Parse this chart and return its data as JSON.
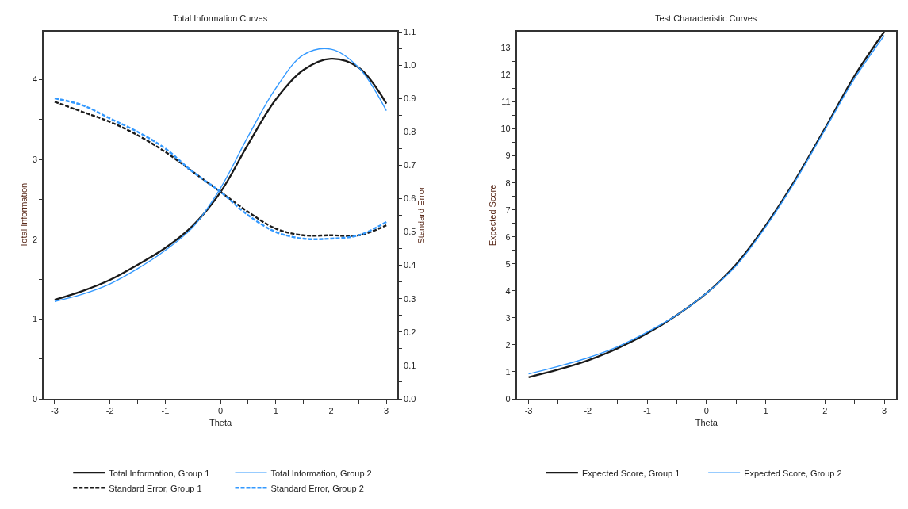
{
  "chart_data": [
    {
      "type": "line",
      "title": "Total Information Curves",
      "xlabel": "Theta",
      "ylabel": "Total Information",
      "y2label": "Standard Error",
      "legend": "bottom",
      "x": [
        -3,
        -2.5,
        -2,
        -1.5,
        -1,
        -0.5,
        0,
        0.5,
        1,
        1.5,
        2,
        2.5,
        3
      ],
      "xlim": [
        -3.2,
        3.2
      ],
      "xticks": [
        -3,
        {
          "value": -2.5,
          "label": null
        },
        -2,
        {
          "value": -1.5,
          "label": null
        },
        -1,
        {
          "value": -0.5,
          "label": null
        },
        0,
        {
          "value": 0.5,
          "label": null
        },
        1,
        {
          "value": 1.5,
          "label": null
        },
        2,
        {
          "value": 2.5,
          "label": null
        },
        3
      ],
      "ylim": [
        0,
        4.6
      ],
      "yticks": [
        0,
        {
          "value": 0.5,
          "label": null
        },
        1,
        {
          "value": 1.5,
          "label": null
        },
        2,
        {
          "value": 2.5,
          "label": null
        },
        3,
        {
          "value": 3.5,
          "label": null
        },
        4,
        {
          "value": 4.5,
          "label": null
        }
      ],
      "y2lim": [
        0,
        1.1
      ],
      "y2ticks": [
        {
          "value": 0,
          "label": "0.0"
        },
        {
          "value": 0.05,
          "label": null
        },
        0.1,
        {
          "value": 0.15,
          "label": null
        },
        0.2,
        {
          "value": 0.25,
          "label": null
        },
        0.3,
        {
          "value": 0.35,
          "label": null
        },
        0.4,
        {
          "value": 0.45,
          "label": null
        },
        0.5,
        {
          "value": 0.55,
          "label": null
        },
        0.6,
        {
          "value": 0.65,
          "label": null
        },
        0.7,
        {
          "value": 0.75,
          "label": null
        },
        0.8,
        {
          "value": 0.85,
          "label": null
        },
        0.9,
        {
          "value": 0.95,
          "label": null
        },
        {
          "value": 1,
          "label": "1.0"
        },
        {
          "value": 1.05,
          "label": null
        },
        1.1
      ],
      "series": [
        {
          "name": "Total Information, Group 1",
          "color": "#1a1a1a",
          "line_style": "solid",
          "values": [
            1.24,
            1.35,
            1.49,
            1.68,
            1.89,
            2.17,
            2.59,
            3.19,
            3.75,
            4.12,
            4.26,
            4.15,
            3.7
          ]
        },
        {
          "name": "Total Information, Group 2",
          "color": "#3399ff",
          "line_style": "solid",
          "values": [
            1.22,
            1.31,
            1.44,
            1.63,
            1.86,
            2.15,
            2.64,
            3.29,
            3.89,
            4.31,
            4.38,
            4.15,
            3.61
          ]
        },
        {
          "name": "Standard Error, Group 1",
          "color": "#1a1a1a",
          "line_style": "dashed",
          "axis": "y2",
          "values": [
            0.89,
            0.86,
            0.83,
            0.79,
            0.74,
            0.68,
            0.62,
            0.56,
            0.51,
            0.49,
            0.49,
            0.49,
            0.52
          ]
        },
        {
          "name": "Standard Error, Group 2",
          "color": "#3399ff",
          "line_style": "dashed",
          "axis": "y2",
          "values": [
            0.9,
            0.88,
            0.84,
            0.8,
            0.75,
            0.68,
            0.62,
            0.55,
            0.5,
            0.48,
            0.48,
            0.49,
            0.53
          ]
        }
      ]
    },
    {
      "type": "line",
      "title": "Test Characteristic Curves",
      "xlabel": "Theta",
      "ylabel": "Expected Score",
      "legend": "bottom",
      "x": [
        -3,
        -2.5,
        -2,
        -1.5,
        -1,
        -0.5,
        0,
        0.5,
        1,
        1.5,
        2,
        2.5,
        3
      ],
      "xlim": [
        -3.2,
        3.2
      ],
      "xticks": [
        -3,
        {
          "value": -2.5,
          "label": null
        },
        -2,
        {
          "value": -1.5,
          "label": null
        },
        -1,
        {
          "value": -0.5,
          "label": null
        },
        0,
        {
          "value": 0.5,
          "label": null
        },
        1,
        {
          "value": 1.5,
          "label": null
        },
        2,
        {
          "value": 2.5,
          "label": null
        },
        3
      ],
      "ylim": [
        0,
        13.6
      ],
      "yticks": [
        0,
        {
          "value": 0.5,
          "label": null
        },
        1,
        {
          "value": 1.5,
          "label": null
        },
        2,
        {
          "value": 2.5,
          "label": null
        },
        3,
        {
          "value": 3.5,
          "label": null
        },
        4,
        {
          "value": 4.5,
          "label": null
        },
        5,
        {
          "value": 5.5,
          "label": null
        },
        6,
        {
          "value": 6.5,
          "label": null
        },
        7,
        {
          "value": 7.5,
          "label": null
        },
        8,
        {
          "value": 8.5,
          "label": null
        },
        9,
        {
          "value": 9.5,
          "label": null
        },
        10,
        {
          "value": 10.5,
          "label": null
        },
        11,
        {
          "value": 11.5,
          "label": null
        },
        12,
        {
          "value": 12.5,
          "label": null
        },
        13
      ],
      "series": [
        {
          "name": "Expected Score, Group 1",
          "color": "#1a1a1a",
          "line_style": "solid",
          "values": [
            0.8,
            1.08,
            1.42,
            1.87,
            2.42,
            3.1,
            3.91,
            4.98,
            6.42,
            8.12,
            10.02,
            11.97,
            13.6
          ]
        },
        {
          "name": "Expected Score, Group 2",
          "color": "#3399ff",
          "line_style": "solid",
          "values": [
            0.92,
            1.2,
            1.52,
            1.93,
            2.47,
            3.1,
            3.91,
            4.93,
            6.37,
            8.07,
            9.97,
            11.87,
            13.46
          ]
        }
      ]
    }
  ]
}
